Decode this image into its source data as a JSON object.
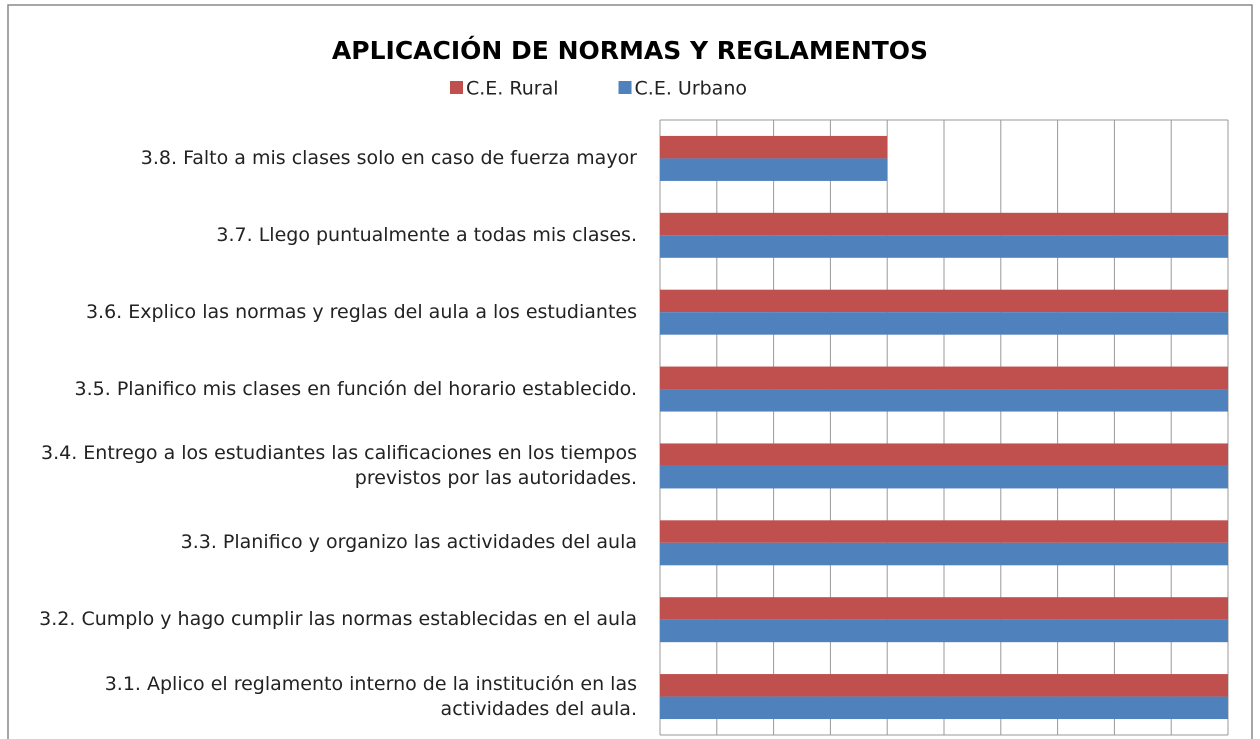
{
  "chart_data": {
    "type": "bar",
    "orientation": "horizontal",
    "title": "APLICACIÓN DE NORMAS Y REGLAMENTOS",
    "categories": [
      "3.8.  Falto a mis clases solo en caso de fuerza mayor",
      "3.7.  Llego puntualmente a todas mis clases.",
      "3.6.  Explico las normas y reglas del aula a los estudiantes",
      "3.5.  Planifico mis clases en función del horario establecido.",
      "3.4.  Entrego a los estudiantes las calificaciones en los tiempos previstos por las autoridades.",
      "3.3.  Planifico y organizo las actividades del aula",
      "3.2.  Cumplo y hago cumplir  las normas establecidas en el aula",
      "3.1.     Aplico el reglamento interno de la institución en las actividades del aula."
    ],
    "series": [
      {
        "name": "C.E. Rural",
        "color": "#c0504d",
        "values": [
          40,
          100,
          100,
          100,
          100,
          100,
          100,
          100
        ]
      },
      {
        "name": "C.E. Urbano",
        "color": "#4f81bd",
        "values": [
          40,
          100,
          100,
          100,
          100,
          100,
          100,
          100
        ]
      }
    ],
    "xlim": [
      0,
      100
    ],
    "xticks": [
      0,
      10,
      20,
      30,
      40,
      50,
      60,
      70,
      80,
      90,
      100
    ],
    "grid": true
  }
}
